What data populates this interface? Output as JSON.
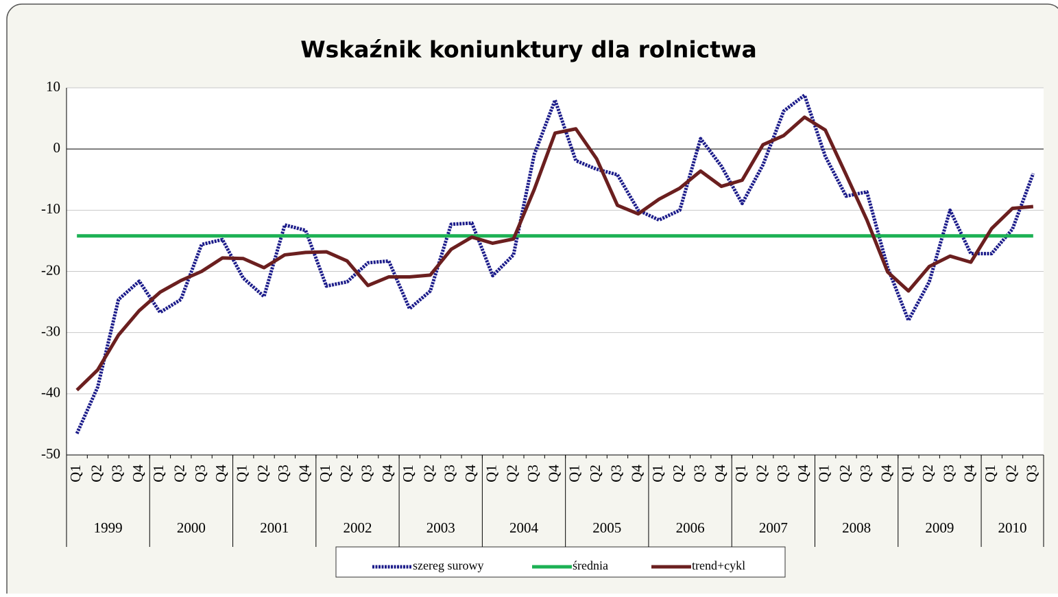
{
  "chart_data": {
    "type": "line",
    "title": "Wskaźnik koniunktury dla rolnictwa",
    "categories": [
      "Q1",
      "Q2",
      "Q3",
      "Q4",
      "Q1",
      "Q2",
      "Q3",
      "Q4",
      "Q1",
      "Q2",
      "Q3",
      "Q4",
      "Q1",
      "Q2",
      "Q3",
      "Q4",
      "Q1",
      "Q2",
      "Q3",
      "Q4",
      "Q1",
      "Q2",
      "Q3",
      "Q4",
      "Q1",
      "Q2",
      "Q3",
      "Q4",
      "Q1",
      "Q2",
      "Q3",
      "Q4",
      "Q1",
      "Q2",
      "Q3",
      "Q4",
      "Q1",
      "Q2",
      "Q3",
      "Q4",
      "Q1",
      "Q2",
      "Q3",
      "Q4",
      "Q1",
      "Q2",
      "Q3"
    ],
    "groups": [
      "1999",
      "2000",
      "2001",
      "2002",
      "2003",
      "2004",
      "2005",
      "2006",
      "2007",
      "2008",
      "2009",
      "2010"
    ],
    "series": [
      {
        "name": "szereg surowy",
        "color": "#1c1c8a",
        "values": [
          -46.5,
          -38.9,
          -24.6,
          -21.6,
          -26.7,
          -24.6,
          -15.6,
          -14.8,
          -21.1,
          -24.1,
          -12.4,
          -13.3,
          -22.4,
          -21.7,
          -18.6,
          -18.3,
          -26.1,
          -23.2,
          -12.3,
          -12.1,
          -20.7,
          -17.3,
          -0.9,
          8,
          -1.9,
          -3.3,
          -4.2,
          -10,
          -11.6,
          -10,
          1.7,
          -2.8,
          -8.9,
          -2.6,
          6.2,
          8.8,
          -1.2,
          -7.7,
          -7,
          -19.4,
          -28,
          -21.7,
          -10,
          -17.1,
          -17.1,
          -13.1,
          -4
        ]
      },
      {
        "name": "średnia",
        "color": "#1db154",
        "values": [
          -14.2,
          -14.2,
          -14.2,
          -14.2,
          -14.2,
          -14.2,
          -14.2,
          -14.2,
          -14.2,
          -14.2,
          -14.2,
          -14.2,
          -14.2,
          -14.2,
          -14.2,
          -14.2,
          -14.2,
          -14.2,
          -14.2,
          -14.2,
          -14.2,
          -14.2,
          -14.2,
          -14.2,
          -14.2,
          -14.2,
          -14.2,
          -14.2,
          -14.2,
          -14.2,
          -14.2,
          -14.2,
          -14.2,
          -14.2,
          -14.2,
          -14.2,
          -14.2,
          -14.2,
          -14.2,
          -14.2,
          -14.2,
          -14.2,
          -14.2,
          -14.2,
          -14.2,
          -14.2,
          -14.2
        ]
      },
      {
        "name": "trend+cykl",
        "color": "#6b1f1f",
        "values": [
          -39.4,
          -36.1,
          -30.4,
          -26.4,
          -23.4,
          -21.5,
          -20,
          -17.8,
          -17.9,
          -19.4,
          -17.3,
          -16.9,
          -16.8,
          -18.3,
          -22.3,
          -20.9,
          -20.9,
          -20.6,
          -16.4,
          -14.4,
          -15.4,
          -14.7,
          -6.6,
          2.6,
          3.3,
          -1.6,
          -9.2,
          -10.6,
          -8.2,
          -6.4,
          -3.6,
          -6.1,
          -5.1,
          0.7,
          2.2,
          5.2,
          3.1,
          -4.2,
          -11.6,
          -20.1,
          -23.2,
          -19.2,
          -17.5,
          -18.5,
          -13,
          -9.7,
          -9.4
        ]
      }
    ],
    "ylim": [
      -50,
      10
    ],
    "yticks": [
      10,
      0,
      -10,
      -20,
      -30,
      -40,
      -50
    ],
    "grid": true
  }
}
